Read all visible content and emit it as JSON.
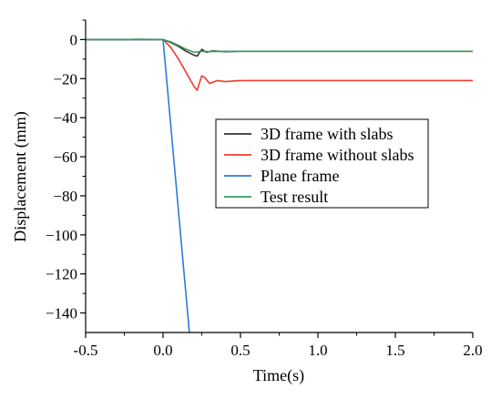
{
  "chart_data": {
    "type": "line",
    "title": "",
    "xlabel": "Time(s)",
    "ylabel": "Displacement (mm)",
    "xlim": [
      -0.5,
      2.0
    ],
    "ylim": [
      -150,
      10
    ],
    "xticks": [
      -0.5,
      0.0,
      0.5,
      1.0,
      1.5,
      2.0
    ],
    "xtick_labels": [
      "-0.5",
      "0.0",
      "0.5",
      "1.0",
      "1.5",
      "2.0"
    ],
    "yticks": [
      0,
      -20,
      -40,
      -60,
      -80,
      -100,
      -120,
      -140
    ],
    "ytick_labels": [
      "0",
      "−20",
      "−40",
      "−60",
      "−80",
      "−100",
      "−120",
      "−140"
    ],
    "grid": false,
    "legend_position": "center-right",
    "series": [
      {
        "name": "3D frame with slabs",
        "color": "#333333",
        "x": [
          -0.5,
          0.0,
          0.05,
          0.1,
          0.15,
          0.2,
          0.22,
          0.25,
          0.28,
          0.32,
          0.4,
          0.5,
          0.6,
          1.0,
          1.5,
          2.0
        ],
        "y": [
          0,
          0,
          -1.5,
          -3.5,
          -6,
          -8,
          -8.5,
          -5,
          -6.5,
          -5.8,
          -6.2,
          -6,
          -6,
          -6,
          -6,
          -6
        ]
      },
      {
        "name": "3D frame without slabs",
        "color": "#ef3b2c",
        "x": [
          -0.5,
          0.0,
          0.05,
          0.1,
          0.15,
          0.2,
          0.22,
          0.25,
          0.27,
          0.3,
          0.35,
          0.4,
          0.5,
          0.6,
          1.0,
          1.5,
          2.0
        ],
        "y": [
          0,
          0,
          -4,
          -10,
          -17,
          -24,
          -26,
          -18.5,
          -19.5,
          -22.5,
          -21,
          -21.5,
          -21,
          -21,
          -21,
          -21,
          -21
        ]
      },
      {
        "name": "Plane frame",
        "color": "#2e7bd4",
        "x": [
          -0.5,
          0.0,
          0.17
        ],
        "y": [
          0,
          0,
          -150
        ]
      },
      {
        "name": "Test result",
        "color": "#3a9c5a",
        "x": [
          -0.5,
          -0.25,
          -0.15,
          0.0,
          0.05,
          0.1,
          0.15,
          0.2,
          0.25,
          0.3,
          0.4,
          0.5,
          0.6,
          1.0,
          1.5,
          2.0
        ],
        "y": [
          0,
          0,
          0.2,
          0,
          -1.2,
          -3,
          -5,
          -6.5,
          -6,
          -6.2,
          -6,
          -6,
          -6,
          -6,
          -6,
          -6
        ]
      }
    ]
  }
}
